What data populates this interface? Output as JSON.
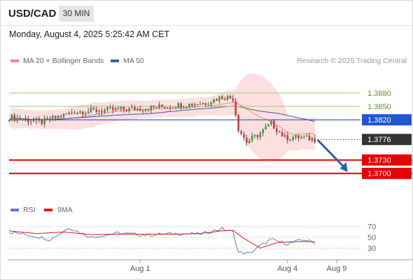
{
  "header": {
    "symbol": "USD/CAD",
    "timeframe": "30 MIN",
    "timestamp": "Monday, August 4, 2025 5:25:42 AM CET"
  },
  "legend": {
    "ma20_label": "MA 20 + Bollinger Bands",
    "ma50_label": "MA 50",
    "credit": "Research © 2025 Trading Central",
    "ma20_color": "#f28b8b",
    "ma50_color": "#3b5ba5"
  },
  "rsi_legend": {
    "rsi_label": "RSI",
    "ma_label": "9MA",
    "rsi_color": "#5b7fd6",
    "ma_color": "#e21b1b"
  },
  "chart_data": [
    {
      "type": "candlestick",
      "ylim": [
        1.364,
        1.393
      ],
      "x_ticks": [
        {
          "label": "Aug 1",
          "index": 48
        },
        {
          "label": "Aug 4",
          "index": 102
        },
        {
          "label": "Aug 9",
          "index": 120
        }
      ],
      "levels": [
        {
          "value": 1.388,
          "label": "1.3880",
          "style": "resistance",
          "color": "#9ccc65"
        },
        {
          "value": 1.385,
          "label": "1.3850",
          "style": "resistance",
          "color": "#9ccc65"
        },
        {
          "value": 1.382,
          "label": "1.3820",
          "style": "pivot",
          "color": "#2155d3"
        },
        {
          "value": 1.3776,
          "label": "1.3776",
          "style": "last_price",
          "color": "#333333"
        },
        {
          "value": 1.373,
          "label": "1.3730",
          "style": "target",
          "color": "#e60000"
        },
        {
          "value": 1.37,
          "label": "1.3700",
          "style": "target",
          "color": "#e60000"
        }
      ],
      "forecast_arrow": {
        "from_index": 113,
        "from_value": 1.3775,
        "to_index": 124,
        "to_value": 1.3703,
        "color": "#2f5fa8"
      },
      "key_points": [
        {
          "index": 0,
          "value": 1.3826
        },
        {
          "index": 12,
          "value": 1.3815
        },
        {
          "index": 24,
          "value": 1.3838
        },
        {
          "index": 48,
          "value": 1.3845
        },
        {
          "index": 72,
          "value": 1.3858
        },
        {
          "index": 78,
          "value": 1.3872
        },
        {
          "index": 82,
          "value": 1.3868
        },
        {
          "index": 84,
          "value": 1.38
        },
        {
          "index": 87,
          "value": 1.377
        },
        {
          "index": 92,
          "value": 1.379
        },
        {
          "index": 96,
          "value": 1.3812
        },
        {
          "index": 101,
          "value": 1.378
        },
        {
          "index": 106,
          "value": 1.3781
        },
        {
          "index": 112,
          "value": 1.3776
        }
      ]
    },
    {
      "type": "line",
      "title": "RSI",
      "ylim": [
        15,
        80
      ],
      "y_ticks": [
        70,
        50,
        30
      ],
      "series": [
        {
          "name": "RSI",
          "key_points": [
            {
              "index": 0,
              "value": 60
            },
            {
              "index": 10,
              "value": 52
            },
            {
              "index": 15,
              "value": 46
            },
            {
              "index": 22,
              "value": 68
            },
            {
              "index": 30,
              "value": 50
            },
            {
              "index": 40,
              "value": 58
            },
            {
              "index": 50,
              "value": 54
            },
            {
              "index": 60,
              "value": 57
            },
            {
              "index": 70,
              "value": 56
            },
            {
              "index": 78,
              "value": 66
            },
            {
              "index": 82,
              "value": 60
            },
            {
              "index": 84,
              "value": 22
            },
            {
              "index": 88,
              "value": 20
            },
            {
              "index": 92,
              "value": 34
            },
            {
              "index": 96,
              "value": 46
            },
            {
              "index": 102,
              "value": 38
            },
            {
              "index": 108,
              "value": 46
            },
            {
              "index": 112,
              "value": 40
            }
          ]
        },
        {
          "name": "9MA",
          "key_points": [
            {
              "index": 0,
              "value": 62
            },
            {
              "index": 10,
              "value": 57
            },
            {
              "index": 20,
              "value": 60
            },
            {
              "index": 30,
              "value": 55
            },
            {
              "index": 40,
              "value": 56
            },
            {
              "index": 50,
              "value": 56
            },
            {
              "index": 60,
              "value": 56
            },
            {
              "index": 70,
              "value": 57
            },
            {
              "index": 78,
              "value": 62
            },
            {
              "index": 82,
              "value": 63
            },
            {
              "index": 86,
              "value": 48
            },
            {
              "index": 92,
              "value": 30
            },
            {
              "index": 98,
              "value": 40
            },
            {
              "index": 104,
              "value": 42
            },
            {
              "index": 112,
              "value": 42
            }
          ]
        }
      ]
    }
  ]
}
